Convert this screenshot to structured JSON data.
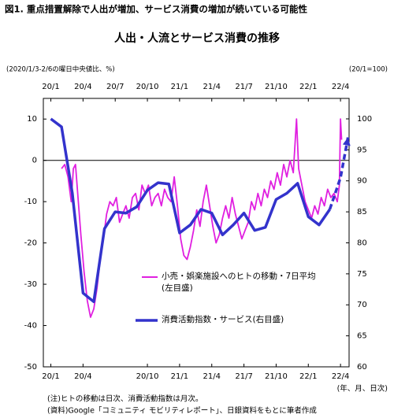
{
  "figure_title": "図1. 重点措置解除で人出が増加、サービス消費の増加が続いている可能性",
  "chart_data": {
    "type": "line",
    "title": "人出・人流とサービス消費の推移",
    "ylabel": "(2020/1/3-2/6の曜日中央値比、%)",
    "y2label": "(20/1=100)",
    "xlabel": "(年、月、日次)",
    "xlim": [
      -0.7,
      27.8
    ],
    "ylim": [
      -50,
      15
    ],
    "y2lim": [
      60,
      103.3
    ],
    "yticks": [
      10,
      0,
      -10,
      -20,
      -30,
      -40,
      -50
    ],
    "y2ticks": [
      100,
      95,
      90,
      85,
      80,
      75,
      70,
      65,
      60
    ],
    "xticks": [
      {
        "value": 0,
        "label": "20/1"
      },
      {
        "value": 3,
        "label": "20/4"
      },
      {
        "value": 6,
        "label": "20/7"
      },
      {
        "value": 9,
        "label": "20/10"
      },
      {
        "value": 12,
        "label": "21/1"
      },
      {
        "value": 15,
        "label": "21/4"
      },
      {
        "value": 18,
        "label": "21/7"
      },
      {
        "value": 21,
        "label": "21/10"
      },
      {
        "value": 24,
        "label": "22/1"
      },
      {
        "value": 27,
        "label": "22/4"
      }
    ],
    "xticks_bottom": [
      {
        "value": 0,
        "label": "20/1"
      },
      {
        "value": 3,
        "label": "20/4"
      },
      {
        "value": 9,
        "label": "20/10"
      },
      {
        "value": 12,
        "label": "21/1"
      },
      {
        "value": 15,
        "label": "21/4"
      },
      {
        "value": 18,
        "label": "21/7"
      },
      {
        "value": 21,
        "label": "21/10"
      },
      {
        "value": 24,
        "label": "22/1"
      },
      {
        "value": 27,
        "label": "22/4"
      }
    ],
    "series": [
      {
        "name": "小売・娯楽施設へのヒトの移動・7日平均\n(左目盛)",
        "color": "#e020e0",
        "x": [
          1.0,
          1.3,
          1.6,
          1.9,
          2.1,
          2.3,
          2.5,
          2.8,
          3.1,
          3.4,
          3.7,
          4.0,
          4.3,
          4.6,
          4.9,
          5.2,
          5.5,
          5.8,
          6.1,
          6.4,
          6.7,
          7.0,
          7.3,
          7.6,
          7.9,
          8.2,
          8.5,
          8.8,
          9.1,
          9.4,
          9.7,
          10.0,
          10.3,
          10.6,
          10.9,
          11.2,
          11.5,
          11.8,
          12.1,
          12.4,
          12.7,
          13.0,
          13.3,
          13.6,
          13.9,
          14.2,
          14.5,
          14.8,
          15.1,
          15.4,
          15.7,
          16.0,
          16.3,
          16.6,
          16.9,
          17.2,
          17.5,
          17.8,
          18.1,
          18.4,
          18.7,
          19.0,
          19.3,
          19.6,
          19.9,
          20.2,
          20.5,
          20.8,
          21.1,
          21.4,
          21.7,
          22.0,
          22.3,
          22.6,
          22.9,
          23.1,
          23.4,
          23.7,
          24.0,
          24.3,
          24.6,
          24.9,
          25.2,
          25.5,
          25.8,
          26.1,
          26.4,
          26.7,
          26.9,
          27.0,
          27.1
        ],
        "values": [
          -2,
          -1,
          -4,
          -10,
          -2,
          -1,
          -8,
          -18,
          -27,
          -34,
          -38,
          -36,
          -31,
          -24,
          -19,
          -13,
          -10,
          -11,
          -9,
          -15,
          -13,
          -11,
          -14,
          -9,
          -8,
          -12,
          -6,
          -8,
          -6,
          -11,
          -9,
          -8,
          -11,
          -7,
          -9,
          -10,
          -4,
          -11,
          -19,
          -23,
          -24,
          -21,
          -17,
          -12,
          -16,
          -10,
          -6,
          -11,
          -16,
          -20,
          -18,
          -14,
          -11,
          -14,
          -9,
          -13,
          -16,
          -19,
          -17,
          -15,
          -10,
          -12,
          -8,
          -11,
          -7,
          -9,
          -5,
          -7,
          -3,
          -6,
          -1,
          -4,
          0,
          -3,
          10,
          -2,
          -6,
          -10,
          -12,
          -14,
          -11,
          -13,
          -9,
          -11,
          -7,
          -9,
          -8,
          -10,
          -6,
          10,
          5
        ]
      },
      {
        "name": "消費活動指数・サービス(右目盛)",
        "color": "#3333cc",
        "axis": "y2",
        "x": [
          0,
          1,
          2,
          3,
          4,
          5,
          6,
          7,
          8,
          9,
          10,
          11,
          12,
          13,
          14,
          15,
          16,
          17,
          18,
          19,
          20,
          21,
          22,
          23,
          24,
          25,
          26
        ],
        "values": [
          100,
          98.7,
          88,
          71.9,
          70.5,
          82.3,
          85,
          84.8,
          85.8,
          88.5,
          89.7,
          89.5,
          81.6,
          82.9,
          85.4,
          84.8,
          81.3,
          82.9,
          84.8,
          82,
          82.5,
          87,
          88,
          89.6,
          84.2,
          82.9,
          85.4
        ],
        "dashed_x": [
          26,
          27,
          27.7
        ],
        "dashed_values": [
          85.4,
          90.5,
          97
        ]
      }
    ]
  },
  "notes": [
    "(注)ヒトの移動は日次、消費活動指数は月次。",
    "(資料)Google「コミュニティ モビリティレポート」、日銀資料をもとに筆者作成"
  ]
}
